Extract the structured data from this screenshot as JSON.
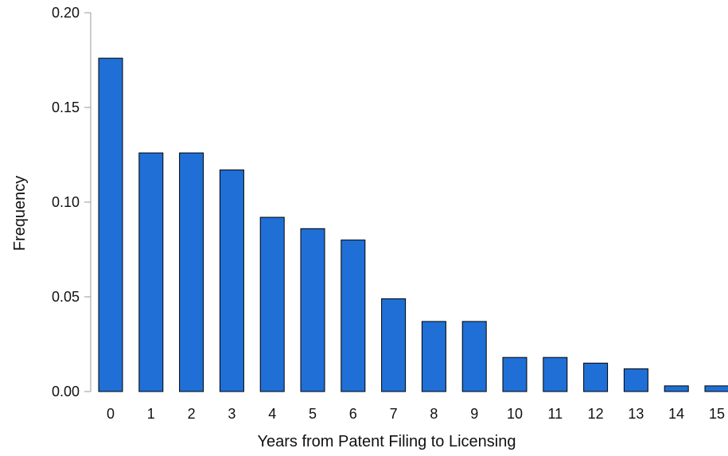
{
  "chart_data": {
    "type": "bar",
    "title": "",
    "xlabel": "Years from Patent Filing to Licensing",
    "ylabel": "Frequency",
    "categories": [
      "0",
      "1",
      "2",
      "3",
      "4",
      "5",
      "6",
      "7",
      "8",
      "9",
      "10",
      "11",
      "12",
      "13",
      "14",
      "15"
    ],
    "values": [
      0.176,
      0.126,
      0.126,
      0.117,
      0.092,
      0.086,
      0.08,
      0.049,
      0.037,
      0.037,
      0.018,
      0.018,
      0.015,
      0.012,
      0.003,
      0.003
    ],
    "ylim": [
      0,
      0.2
    ],
    "yticks": [
      0.0,
      0.05,
      0.1,
      0.15,
      0.2
    ],
    "ytick_labels": [
      "0.00",
      "0.05",
      "0.10",
      "0.15",
      "0.20"
    ],
    "grid": false,
    "legend": "none",
    "bar_color": "#1f6fd6",
    "bar_edge_color": "#000000"
  }
}
